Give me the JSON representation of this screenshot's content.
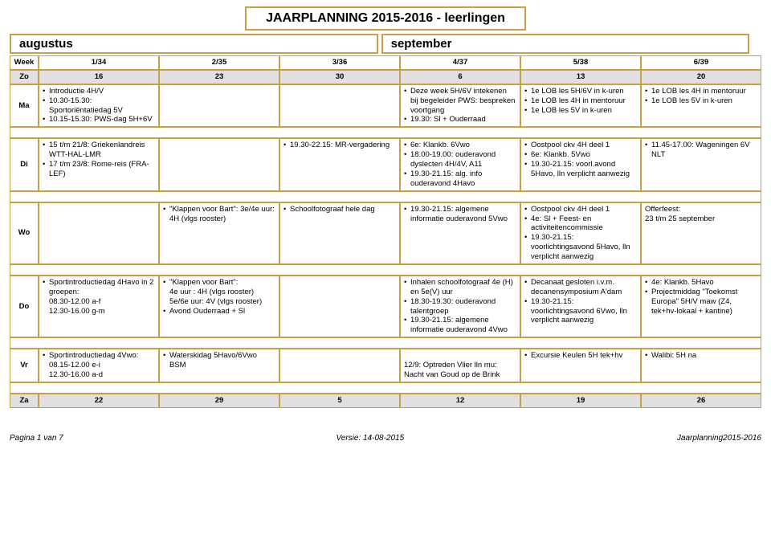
{
  "title": "JAARPLANNING 2015-2016 - leerlingen",
  "months": {
    "aug": "augustus",
    "sep": "september"
  },
  "header": {
    "label": "Week",
    "wk": [
      "1/34",
      "2/35",
      "3/36",
      "4/37",
      "5/38",
      "6/39"
    ]
  },
  "zo1": {
    "label": "Zo",
    "d": [
      "16",
      "23",
      "30",
      "6",
      "13",
      "20"
    ]
  },
  "ma": {
    "label": "Ma",
    "c1": [
      "Introductie 4H/V",
      "10.30-15.30: Sportoriëntatiedag 5V",
      "10.15-15.30: PWS-dag 5H+6V"
    ],
    "c2": [],
    "c3": [],
    "c4": [
      "Deze week 5H/6V intekenen bij begeleider PWS: bespreken voortgang",
      "19.30: Sl + Ouderraad"
    ],
    "c5": [
      "1e LOB les 5H/6V in k-uren",
      "1e LOB les 4H in mentoruur",
      "1e LOB les 5V in k-uren"
    ],
    "c6": [
      "1e LOB les 4H in mentoruur",
      "1e LOB les 5V in k-uren"
    ]
  },
  "di": {
    "label": "Di",
    "c1": [
      "15 t/m 21/8: Griekenlandreis WTT-HAL-LMR",
      "17 t/m 23/8: Rome-reis (FRA-LEF)"
    ],
    "c2": [],
    "c3": [
      "19.30-22.15: MR-vergadering"
    ],
    "c4": [
      "6e: Klankb. 6Vwo",
      "18.00-19.00: ouderavond dyslecten 4H/4V, A11",
      "19.30-21.15: alg. info ouderavond 4Havo"
    ],
    "c5": [
      "Oostpool ckv 4H deel 1",
      "6e: Klankb. 5Vwo",
      "19.30-21.15: voorl.avond 5Havo, lln verplicht aanwezig"
    ],
    "c6": [
      "11.45-17.00: Wageningen 6V NLT"
    ]
  },
  "wo": {
    "label": "Wo",
    "c1": [],
    "c2": [
      "\"Klappen voor Bart\": 3e/4e uur: 4H (vlgs rooster)"
    ],
    "c3": [
      "Schoolfotograaf hele dag"
    ],
    "c4": [
      "19.30-21.15: algemene informatie ouderavond 5Vwo"
    ],
    "c5": [
      "Oostpool ckv 4H deel 1",
      "4e: Sl + Feest- en activiteitencommissie",
      "19.30-21.15: voorlichtingsavond 5Havo, lln verplicht aanwezig"
    ],
    "c6_plain": "Offerfeest:\n23 t/m 25 september"
  },
  "do": {
    "label": "Do",
    "c1": [
      "Sportintroductiedag 4Havo in 2 groepen:\n08.30-12.00 a-f\n12.30-16.00 g-m"
    ],
    "c2": [
      "\"Klappen voor Bart\":\n4e uur : 4H (vlgs rooster)\n5e/6e uur: 4V (vlgs rooster)",
      "Avond Ouderraad + Sl"
    ],
    "c3": [],
    "c4": [
      "Inhalen schoolfotograaf 4e (H) en 5e(V) uur",
      "18.30-19.30: ouderavond talentgroep",
      "19.30-21.15: algemene informatie ouderavond 4Vwo"
    ],
    "c5": [
      "Decanaat gesloten i.v.m. decanensymposium A'dam",
      "19.30-21.15: voorlichtingsavond 6Vwo, lln verplicht aanwezig"
    ],
    "c6": [
      "4e: Klankb. 5Havo",
      "Projectmiddag \"Toekomst Europa\" 5H/V maw (Z4, tek+hv-lokaal + kantine)"
    ]
  },
  "vr": {
    "label": "Vr",
    "c1": [
      "Sportintroductiedag 4Vwo:\n08.15-12.00 e-i\n12.30-16.00 a-d"
    ],
    "c2": [
      "Waterskidag 5Havo/6Vwo BSM"
    ],
    "c3": [],
    "c4_plain": "12/9: Optreden Vlier lln mu:\nNacht van Goud op de Brink",
    "c5": [
      "Excursie Keulen 5H tek+hv"
    ],
    "c6": [
      "Walibi: 5H na"
    ]
  },
  "za": {
    "label": "Za",
    "d": [
      "22",
      "29",
      "5",
      "12",
      "19",
      "26"
    ]
  },
  "footer": {
    "left": "Pagina 1 van 7",
    "mid": "Versie: 14-08-2015",
    "right": "Jaarplanning2015-2016"
  },
  "colors": {
    "border": "#c8a048",
    "gray": "#e0e0e0"
  }
}
